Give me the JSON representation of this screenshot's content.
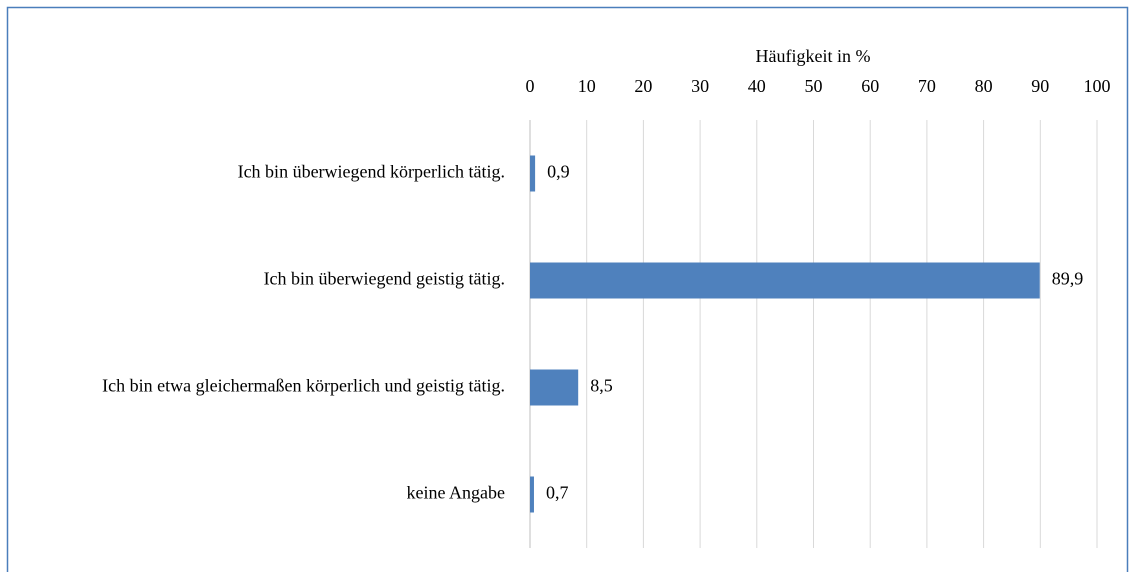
{
  "chart_data": {
    "type": "barh",
    "x_label": "Häufigkeit in %",
    "categories": [
      "Ich bin überwiegend körperlich tätig.",
      "Ich bin überwiegend geistig tätig.",
      "Ich bin etwa gleichermaßen körperlich und geistig tätig.",
      "keine Angabe"
    ],
    "values": [
      0.9,
      89.9,
      8.5,
      0.7
    ],
    "value_labels": [
      "0,9",
      "89,9",
      "8,5",
      "0,7"
    ],
    "color": "#4f81bd",
    "xlim": [
      0,
      100
    ],
    "xticks": [
      0,
      10,
      20,
      30,
      40,
      50,
      60,
      70,
      80,
      90,
      100
    ],
    "grid": true
  }
}
